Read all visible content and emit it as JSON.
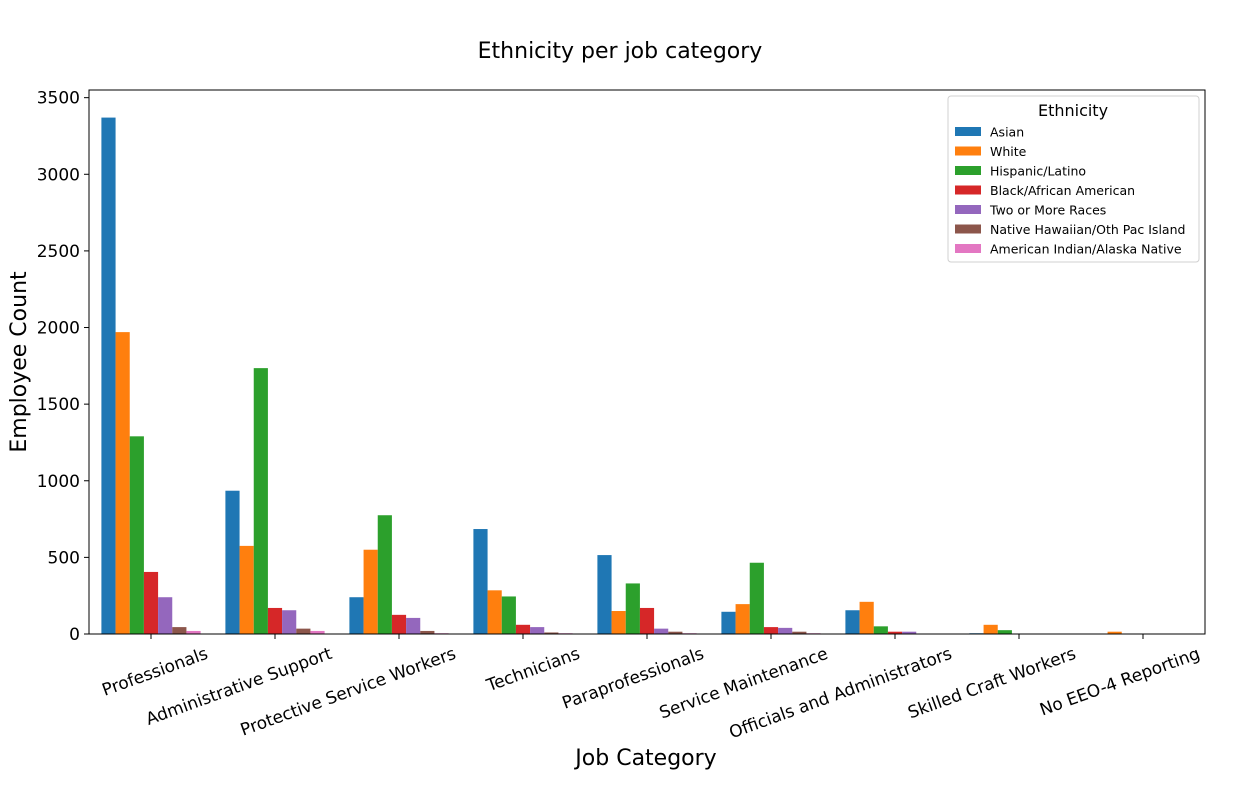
{
  "chart_data": {
    "type": "bar",
    "title": "Ethnicity per job category",
    "xlabel": "Job Category",
    "ylabel": "Employee Count",
    "ylim": [
      0,
      3550
    ],
    "yticks": [
      0,
      500,
      1000,
      1500,
      2000,
      2500,
      3000,
      3500
    ],
    "grid": false,
    "legend": {
      "title": "Ethnicity",
      "placement": "top-right"
    },
    "categories": [
      "Professionals",
      "Administrative Support",
      "Protective Service Workers",
      "Technicians",
      "Paraprofessionals",
      "Service Maintenance",
      "Officials and Administrators",
      "Skilled Craft Workers",
      "No EEO-4 Reporting"
    ],
    "series": [
      {
        "name": "Asian",
        "color": "#1f77b4",
        "values": [
          3370,
          935,
          240,
          685,
          515,
          145,
          155,
          5,
          0
        ]
      },
      {
        "name": "White",
        "color": "#ff7f0e",
        "values": [
          1970,
          575,
          550,
          285,
          150,
          195,
          210,
          60,
          15
        ]
      },
      {
        "name": "Hispanic/Latino",
        "color": "#2ca02c",
        "values": [
          1290,
          1735,
          775,
          245,
          330,
          465,
          50,
          25,
          0
        ]
      },
      {
        "name": "Black/African American",
        "color": "#d62728",
        "values": [
          405,
          170,
          125,
          60,
          170,
          45,
          15,
          0,
          0
        ]
      },
      {
        "name": "Two or More Races",
        "color": "#9467bd",
        "values": [
          240,
          155,
          105,
          45,
          35,
          40,
          15,
          0,
          0
        ]
      },
      {
        "name": "Native Hawaiian/Oth Pac Island",
        "color": "#8c564b",
        "values": [
          45,
          35,
          20,
          10,
          15,
          15,
          0,
          0,
          0
        ]
      },
      {
        "name": "American Indian/Alaska Native",
        "color": "#e377c2",
        "values": [
          20,
          20,
          5,
          5,
          5,
          5,
          0,
          0,
          0
        ]
      }
    ]
  }
}
